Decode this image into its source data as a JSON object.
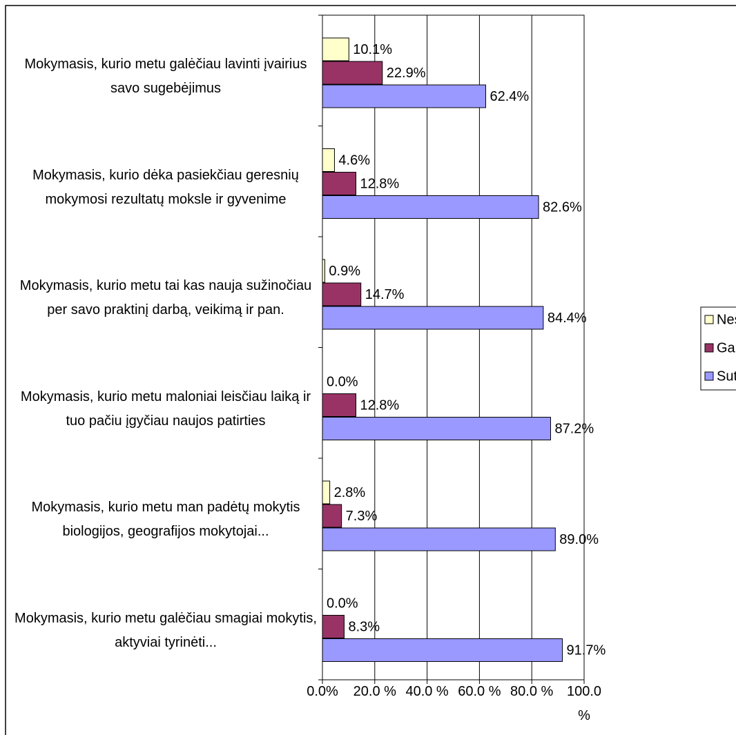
{
  "chart_data": {
    "type": "bar",
    "orientation": "horizontal",
    "categories": [
      "Mokymasis, kurio metu galėčiau lavinti įvairius savo sugebėjimus",
      "Mokymasis, kurio dėka pasiekčiau geresnių mokymosi rezultatų moksle ir gyvenime",
      "Mokymasis, kurio metu tai kas nauja sužinočiau per savo praktinį darbą, veikimą ir pan.",
      "Mokymasis, kurio metu maloniai leisčiau laiką ir tuo pačiu įgyčiau naujos patirties",
      "Mokymasis, kurio metu man padėtų mokytis biologijos, geografijos mokytojai...",
      "Mokymasis, kurio metu galėčiau smagiai mokytis, aktyviai tyrinėti..."
    ],
    "series": [
      {
        "name": "Nesutinku",
        "color": "#ffffcc",
        "values": [
          10.1,
          4.6,
          0.9,
          0.0,
          2.8,
          0.0
        ],
        "value_labels": [
          "10.1%",
          "4.6%",
          "0.9%",
          "0.0%",
          "2.8%",
          "0.0%"
        ]
      },
      {
        "name": "Galbūt",
        "color": "#993366",
        "values": [
          22.9,
          12.8,
          14.7,
          12.8,
          7.3,
          8.3
        ],
        "value_labels": [
          "22.9%",
          "12.8%",
          "14.7%",
          "12.8%",
          "7.3%",
          "8.3%"
        ]
      },
      {
        "name": "Sutinku",
        "color": "#9999ff",
        "values": [
          62.4,
          82.6,
          84.4,
          87.2,
          89.0,
          91.7
        ],
        "value_labels": [
          "62.4%",
          "82.6%",
          "84.4%",
          "87.2%",
          "89.0%",
          "91.7%"
        ]
      }
    ],
    "xlim": [
      0,
      100
    ],
    "xticks": [
      {
        "value": 0,
        "label": "0.0%"
      },
      {
        "value": 20,
        "label": "20.0 %"
      },
      {
        "value": 40,
        "label": "40.0 %"
      },
      {
        "value": 60,
        "label": "60.0 %"
      },
      {
        "value": 80,
        "label": "80.0 %"
      },
      {
        "value": 100,
        "label": "100.0 %"
      }
    ],
    "grid": true,
    "legend": "right"
  }
}
